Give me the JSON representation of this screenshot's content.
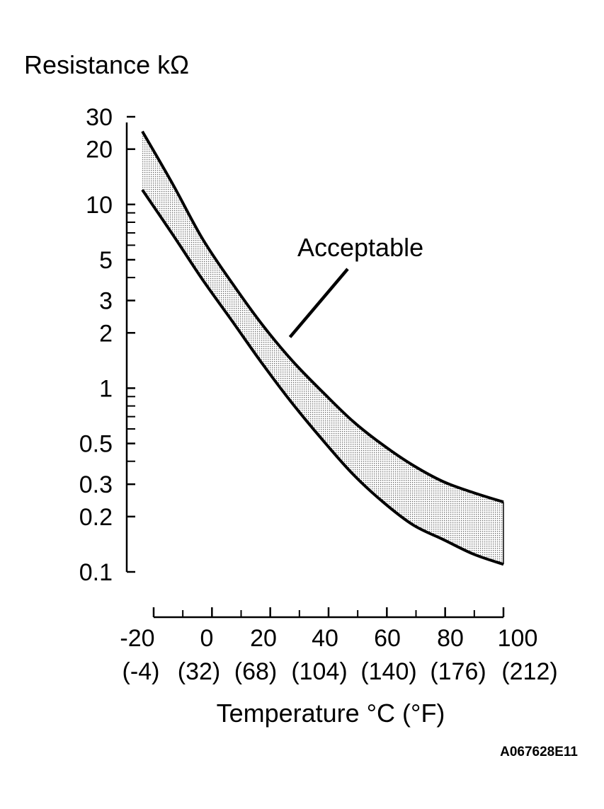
{
  "chart_data": {
    "type": "area",
    "ylabel": "Resistance kΩ",
    "xlabel": "Temperature °C (°F)",
    "yscale": "log",
    "ylim": [
      0.1,
      30
    ],
    "xlim": [
      -20,
      100
    ],
    "y_ticks": [
      0.1,
      0.2,
      0.3,
      0.5,
      1,
      2,
      3,
      5,
      10,
      20,
      30
    ],
    "y_minor_ticks": [
      0.4,
      0.6,
      0.7,
      0.8,
      0.9,
      4,
      6,
      7,
      8,
      9
    ],
    "y_tick_labels": [
      "0.1",
      "0.2",
      "0.3",
      "0.5",
      "1",
      "2",
      "3",
      "5",
      "10",
      "20",
      "30"
    ],
    "x_ticks": [
      -20,
      0,
      20,
      40,
      60,
      80,
      100
    ],
    "x_minor_ticks": [
      -10,
      10,
      30,
      50,
      70,
      90
    ],
    "x_tick_labels": [
      "-20",
      "0",
      "20",
      "40",
      "60",
      "80",
      "100"
    ],
    "x_tick_labels_f": [
      "(-4)",
      "(32)",
      "(68)",
      "(104)",
      "(140)",
      "(176)",
      "(212)"
    ],
    "x": [
      -20,
      -10,
      0,
      10,
      20,
      30,
      40,
      50,
      60,
      70,
      80,
      90,
      100
    ],
    "band_upper": [
      25,
      13,
      6.5,
      3.7,
      2.2,
      1.4,
      0.95,
      0.66,
      0.49,
      0.38,
      0.31,
      0.27,
      0.24
    ],
    "band_lower": [
      12,
      6.9,
      3.9,
      2.3,
      1.35,
      0.82,
      0.52,
      0.34,
      0.24,
      0.18,
      0.15,
      0.125,
      0.11
    ],
    "annotation": {
      "text": "Acceptable",
      "x": 30,
      "y": 2.0
    },
    "figure_code": "A067628E11",
    "grid": false
  }
}
